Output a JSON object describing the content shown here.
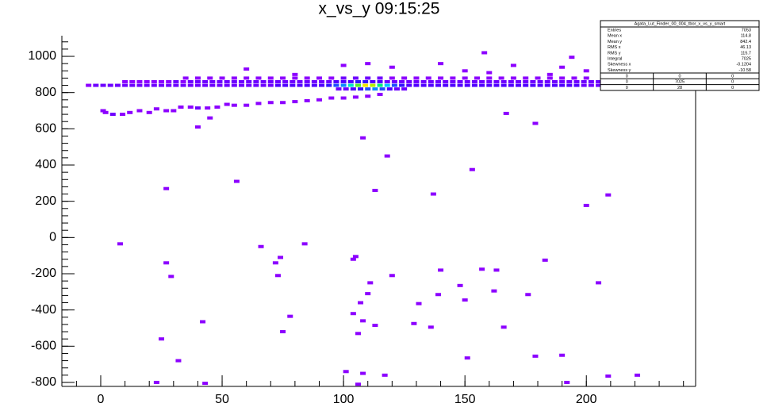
{
  "chart_data": {
    "type": "histogram2d",
    "title": "x_vs_y  09:15:25",
    "xlim": [
      -16,
      245
    ],
    "ylim": [
      -822,
      1114
    ],
    "xticks": [
      0,
      50,
      100,
      150,
      200
    ],
    "yticks": [
      -800,
      -600,
      -400,
      -200,
      0,
      200,
      400,
      600,
      800,
      1000
    ],
    "palette": [
      "#8c00ff",
      "#6e00ff",
      "#5000ff",
      "#3214ff",
      "#1e50ff",
      "#0a8cff",
      "#00c8ff",
      "#00e6c8",
      "#00f078",
      "#50f028",
      "#b4f000",
      "#f0e600"
    ],
    "points": [
      [
        -5,
        840,
        1
      ],
      [
        -2,
        840,
        2
      ],
      [
        1,
        840,
        2
      ],
      [
        4,
        840,
        2
      ],
      [
        7,
        840,
        3
      ],
      [
        10,
        840,
        3
      ],
      [
        13,
        840,
        3
      ],
      [
        16,
        840,
        3
      ],
      [
        19,
        840,
        3
      ],
      [
        22,
        840,
        3
      ],
      [
        25,
        840,
        3
      ],
      [
        28,
        840,
        3
      ],
      [
        31,
        840,
        2
      ],
      [
        34,
        840,
        3
      ],
      [
        37,
        840,
        3
      ],
      [
        40,
        840,
        3
      ],
      [
        43,
        840,
        3
      ],
      [
        46,
        840,
        3
      ],
      [
        49,
        840,
        3
      ],
      [
        52,
        840,
        3
      ],
      [
        55,
        840,
        3
      ],
      [
        58,
        840,
        3
      ],
      [
        61,
        840,
        3
      ],
      [
        64,
        840,
        3
      ],
      [
        67,
        840,
        3
      ],
      [
        70,
        840,
        3
      ],
      [
        73,
        840,
        4
      ],
      [
        76,
        840,
        4
      ],
      [
        79,
        840,
        4
      ],
      [
        82,
        840,
        4
      ],
      [
        85,
        840,
        4
      ],
      [
        88,
        840,
        5
      ],
      [
        91,
        840,
        5
      ],
      [
        94,
        840,
        6
      ],
      [
        97,
        840,
        8
      ],
      [
        100,
        840,
        10
      ],
      [
        103,
        840,
        14
      ],
      [
        106,
        840,
        18
      ],
      [
        109,
        840,
        22
      ],
      [
        112,
        840,
        20
      ],
      [
        115,
        840,
        16
      ],
      [
        118,
        840,
        12
      ],
      [
        121,
        840,
        8
      ],
      [
        124,
        840,
        6
      ],
      [
        127,
        840,
        5
      ],
      [
        130,
        840,
        5
      ],
      [
        133,
        840,
        5
      ],
      [
        136,
        840,
        4
      ],
      [
        139,
        840,
        4
      ],
      [
        142,
        840,
        4
      ],
      [
        145,
        840,
        4
      ],
      [
        148,
        840,
        4
      ],
      [
        151,
        840,
        4
      ],
      [
        154,
        840,
        4
      ],
      [
        157,
        840,
        4
      ],
      [
        160,
        840,
        4
      ],
      [
        163,
        840,
        4
      ],
      [
        166,
        840,
        4
      ],
      [
        169,
        840,
        4
      ],
      [
        172,
        840,
        4
      ],
      [
        175,
        840,
        4
      ],
      [
        178,
        840,
        4
      ],
      [
        181,
        840,
        4
      ],
      [
        184,
        840,
        4
      ],
      [
        187,
        840,
        4
      ],
      [
        190,
        840,
        4
      ],
      [
        193,
        840,
        4
      ],
      [
        196,
        840,
        4
      ],
      [
        199,
        840,
        3
      ],
      [
        202,
        840,
        3
      ],
      [
        205,
        840,
        3
      ],
      [
        10,
        860,
        1
      ],
      [
        13,
        860,
        1
      ],
      [
        16,
        860,
        1
      ],
      [
        19,
        860,
        1
      ],
      [
        22,
        860,
        1
      ],
      [
        25,
        860,
        1
      ],
      [
        28,
        860,
        1
      ],
      [
        31,
        860,
        2
      ],
      [
        34,
        860,
        1
      ],
      [
        37,
        860,
        2
      ],
      [
        40,
        860,
        2
      ],
      [
        43,
        860,
        2
      ],
      [
        46,
        860,
        2
      ],
      [
        49,
        860,
        2
      ],
      [
        52,
        860,
        2
      ],
      [
        55,
        860,
        2
      ],
      [
        58,
        860,
        2
      ],
      [
        61,
        860,
        2
      ],
      [
        64,
        860,
        2
      ],
      [
        67,
        860,
        2
      ],
      [
        70,
        860,
        2
      ],
      [
        73,
        860,
        2
      ],
      [
        76,
        860,
        2
      ],
      [
        79,
        860,
        2
      ],
      [
        82,
        860,
        2
      ],
      [
        85,
        860,
        2
      ],
      [
        88,
        860,
        3
      ],
      [
        91,
        860,
        3
      ],
      [
        94,
        860,
        3
      ],
      [
        97,
        860,
        4
      ],
      [
        100,
        860,
        4
      ],
      [
        103,
        860,
        5
      ],
      [
        106,
        860,
        6
      ],
      [
        109,
        860,
        6
      ],
      [
        112,
        860,
        5
      ],
      [
        115,
        860,
        4
      ],
      [
        118,
        860,
        3
      ],
      [
        121,
        860,
        3
      ],
      [
        124,
        860,
        3
      ],
      [
        127,
        860,
        3
      ],
      [
        130,
        860,
        3
      ],
      [
        133,
        860,
        3
      ],
      [
        136,
        860,
        3
      ],
      [
        139,
        860,
        3
      ],
      [
        142,
        860,
        3
      ],
      [
        145,
        860,
        3
      ],
      [
        148,
        860,
        3
      ],
      [
        151,
        860,
        3
      ],
      [
        154,
        860,
        3
      ],
      [
        157,
        860,
        3
      ],
      [
        160,
        860,
        3
      ],
      [
        163,
        860,
        3
      ],
      [
        166,
        860,
        3
      ],
      [
        169,
        860,
        3
      ],
      [
        172,
        860,
        3
      ],
      [
        175,
        860,
        3
      ],
      [
        178,
        860,
        3
      ],
      [
        181,
        860,
        3
      ],
      [
        184,
        860,
        3
      ],
      [
        187,
        860,
        3
      ],
      [
        190,
        860,
        3
      ],
      [
        193,
        860,
        3
      ],
      [
        196,
        860,
        3
      ],
      [
        199,
        860,
        2
      ],
      [
        202,
        860,
        2
      ],
      [
        205,
        860,
        2
      ],
      [
        35,
        880,
        1
      ],
      [
        40,
        880,
        1
      ],
      [
        45,
        880,
        1
      ],
      [
        50,
        880,
        1
      ],
      [
        55,
        880,
        1
      ],
      [
        60,
        880,
        1
      ],
      [
        65,
        880,
        1
      ],
      [
        70,
        880,
        1
      ],
      [
        75,
        880,
        1
      ],
      [
        80,
        880,
        1
      ],
      [
        85,
        880,
        1
      ],
      [
        90,
        880,
        1
      ],
      [
        95,
        880,
        1
      ],
      [
        100,
        880,
        2
      ],
      [
        105,
        880,
        2
      ],
      [
        110,
        880,
        2
      ],
      [
        115,
        880,
        2
      ],
      [
        120,
        880,
        1
      ],
      [
        125,
        880,
        1
      ],
      [
        130,
        880,
        1
      ],
      [
        135,
        880,
        1
      ],
      [
        140,
        880,
        1
      ],
      [
        145,
        880,
        1
      ],
      [
        150,
        880,
        1
      ],
      [
        155,
        880,
        1
      ],
      [
        160,
        880,
        1
      ],
      [
        165,
        880,
        1
      ],
      [
        170,
        880,
        1
      ],
      [
        175,
        880,
        1
      ],
      [
        180,
        880,
        1
      ],
      [
        185,
        880,
        1
      ],
      [
        190,
        880,
        1
      ],
      [
        195,
        880,
        1
      ],
      [
        200,
        880,
        1
      ],
      [
        98,
        820,
        2
      ],
      [
        101,
        820,
        3
      ],
      [
        104,
        820,
        4
      ],
      [
        107,
        820,
        6
      ],
      [
        110,
        820,
        8
      ],
      [
        113,
        820,
        10
      ],
      [
        116,
        820,
        8
      ],
      [
        119,
        820,
        5
      ],
      [
        122,
        820,
        3
      ],
      [
        125,
        820,
        2
      ],
      [
        1,
        700,
        1
      ],
      [
        2,
        690,
        1
      ],
      [
        5,
        680,
        2
      ],
      [
        9,
        680,
        1
      ],
      [
        12,
        690,
        1
      ],
      [
        16,
        700,
        1
      ],
      [
        20,
        690,
        1
      ],
      [
        23,
        710,
        1
      ],
      [
        27,
        700,
        1
      ],
      [
        30,
        700,
        1
      ],
      [
        33,
        720,
        1
      ],
      [
        37,
        720,
        1
      ],
      [
        40,
        715,
        2
      ],
      [
        44,
        715,
        1
      ],
      [
        48,
        720,
        1
      ],
      [
        52,
        735,
        1
      ],
      [
        55,
        730,
        1
      ],
      [
        60,
        730,
        1
      ],
      [
        65,
        740,
        1
      ],
      [
        70,
        745,
        1
      ],
      [
        75,
        745,
        1
      ],
      [
        80,
        750,
        1
      ],
      [
        85,
        755,
        1
      ],
      [
        90,
        760,
        1
      ],
      [
        95,
        770,
        1
      ],
      [
        100,
        770,
        1
      ],
      [
        105,
        775,
        1
      ],
      [
        110,
        780,
        1
      ],
      [
        115,
        790,
        1
      ],
      [
        60,
        930,
        1
      ],
      [
        80,
        900,
        1
      ],
      [
        100,
        950,
        1
      ],
      [
        110,
        960,
        1
      ],
      [
        120,
        940,
        1
      ],
      [
        140,
        960,
        1
      ],
      [
        150,
        920,
        1
      ],
      [
        160,
        910,
        1
      ],
      [
        170,
        950,
        1
      ],
      [
        185,
        900,
        1
      ],
      [
        190,
        940,
        1
      ],
      [
        200,
        920,
        1
      ],
      [
        8,
        -35,
        1
      ],
      [
        27,
        270,
        1
      ],
      [
        27,
        -140,
        1
      ],
      [
        29,
        -215,
        1
      ],
      [
        56,
        310,
        1
      ],
      [
        32,
        -680,
        1
      ],
      [
        42,
        -465,
        1
      ],
      [
        25,
        -560,
        1
      ],
      [
        40,
        610,
        1
      ],
      [
        45,
        660,
        1
      ],
      [
        66,
        -50,
        1
      ],
      [
        84,
        -35,
        1
      ],
      [
        74,
        -110,
        1
      ],
      [
        72,
        -140,
        1
      ],
      [
        73,
        -210,
        1
      ],
      [
        78,
        -435,
        1
      ],
      [
        75,
        -520,
        1
      ],
      [
        108,
        550,
        1
      ],
      [
        118,
        450,
        1
      ],
      [
        113,
        260,
        1
      ],
      [
        137,
        240,
        1
      ],
      [
        153,
        375,
        1
      ],
      [
        167,
        685,
        1
      ],
      [
        179,
        630,
        1
      ],
      [
        200,
        177,
        1
      ],
      [
        209,
        235,
        1
      ],
      [
        105,
        -105,
        1
      ],
      [
        104,
        -120,
        1
      ],
      [
        120,
        -210,
        1
      ],
      [
        111,
        -250,
        1
      ],
      [
        110,
        -310,
        1
      ],
      [
        140,
        -180,
        1
      ],
      [
        131,
        -365,
        1
      ],
      [
        139,
        -315,
        1
      ],
      [
        148,
        -265,
        1
      ],
      [
        150,
        -345,
        1
      ],
      [
        157,
        -175,
        1
      ],
      [
        163,
        -180,
        1
      ],
      [
        162,
        -295,
        1
      ],
      [
        176,
        -315,
        1
      ],
      [
        183,
        -125,
        1
      ],
      [
        205,
        -250,
        1
      ],
      [
        107,
        -360,
        1
      ],
      [
        104,
        -420,
        1
      ],
      [
        108,
        -460,
        1
      ],
      [
        113,
        -485,
        1
      ],
      [
        106,
        -530,
        1
      ],
      [
        129,
        -475,
        1
      ],
      [
        136,
        -495,
        1
      ],
      [
        166,
        -495,
        1
      ],
      [
        151,
        -665,
        1
      ],
      [
        179,
        -655,
        1
      ],
      [
        190,
        -650,
        1
      ],
      [
        101,
        -740,
        1
      ],
      [
        108,
        -750,
        1
      ],
      [
        117,
        -760,
        1
      ],
      [
        209,
        -765,
        1
      ],
      [
        221,
        -760,
        1
      ],
      [
        23,
        -800,
        1
      ],
      [
        43,
        -805,
        1
      ],
      [
        106,
        -810,
        1
      ],
      [
        192,
        -800,
        1
      ],
      [
        158,
        1020,
        1
      ],
      [
        194,
        995,
        1
      ]
    ],
    "stats": {
      "title": "Agata_Lut_Finder_00_004_tbor_x_vs_y_smart",
      "rows": [
        [
          "Entries",
          "7053"
        ],
        [
          "Mean x",
          "114.8"
        ],
        [
          "Mean y",
          "842.4"
        ],
        [
          "RMS x",
          "46.13"
        ],
        [
          "RMS y",
          "115.7"
        ],
        [
          "Integral",
          "7025"
        ],
        [
          "Skewness x",
          "-0.1204"
        ],
        [
          "Skewness y",
          "-10.58"
        ]
      ],
      "table": [
        [
          "0",
          "0",
          "0"
        ],
        [
          "0",
          "7025",
          "0"
        ],
        [
          "0",
          "28",
          "0"
        ]
      ]
    }
  }
}
